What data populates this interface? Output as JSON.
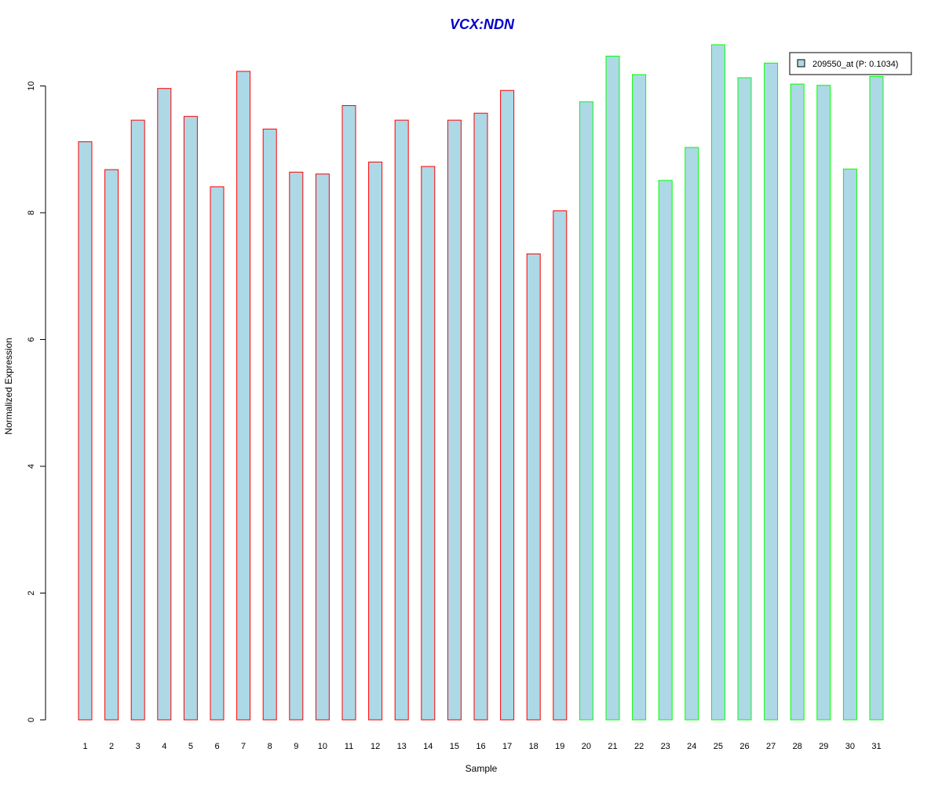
{
  "chart_data": {
    "type": "bar",
    "title": "VCX:NDN",
    "xlabel": "Sample",
    "ylabel": "Normalized Expression",
    "ylim": [
      0,
      10.8
    ],
    "yticks": [
      0,
      2,
      4,
      6,
      8,
      10
    ],
    "categories": [
      "1",
      "2",
      "3",
      "4",
      "5",
      "6",
      "7",
      "8",
      "9",
      "10",
      "11",
      "12",
      "13",
      "14",
      "15",
      "16",
      "17",
      "18",
      "19",
      "20",
      "21",
      "22",
      "23",
      "24",
      "25",
      "26",
      "27",
      "28",
      "29",
      "30",
      "31"
    ],
    "series": [
      {
        "name": "209550_at (P: 0.1034)",
        "values": [
          9.12,
          8.68,
          9.46,
          9.96,
          9.52,
          8.41,
          10.23,
          9.32,
          8.64,
          8.61,
          9.69,
          8.8,
          9.46,
          8.73,
          9.46,
          9.57,
          9.93,
          7.35,
          8.03,
          9.75,
          10.47,
          10.18,
          8.51,
          9.03,
          10.65,
          10.13,
          10.36,
          10.03,
          10.01,
          8.69,
          10.15
        ],
        "group": [
          "red",
          "red",
          "red",
          "red",
          "red",
          "red",
          "red",
          "red",
          "red",
          "red",
          "red",
          "red",
          "red",
          "red",
          "red",
          "red",
          "red",
          "red",
          "red",
          "green",
          "green",
          "green",
          "green",
          "green",
          "green",
          "green",
          "green",
          "green",
          "green",
          "green",
          "green"
        ]
      }
    ],
    "legend": {
      "position": "top-right",
      "label": "209550_at (P: 0.1034)"
    },
    "colors": {
      "fill": "#add8e6",
      "group_red": "#ff0000",
      "group_green": "#00ff00",
      "title": "#0000cc"
    },
    "grid": false
  }
}
